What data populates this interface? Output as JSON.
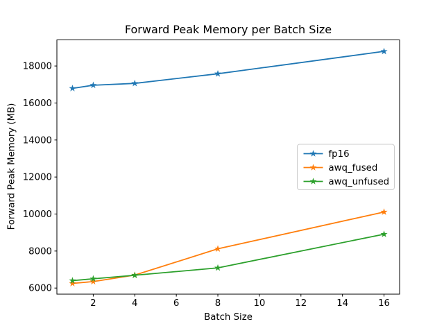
{
  "chart_data": {
    "type": "line",
    "title": "Forward Peak Memory per Batch Size",
    "xlabel": "Batch Size",
    "ylabel": "Forward Peak Memory (MB)",
    "x": [
      1,
      2,
      4,
      8,
      16
    ],
    "series": [
      {
        "name": "fp16",
        "color": "#1f77b4",
        "values": [
          16790,
          16960,
          17060,
          17580,
          18790
        ]
      },
      {
        "name": "awq_fused",
        "color": "#ff7f0e",
        "values": [
          6250,
          6350,
          6700,
          8120,
          10110
        ]
      },
      {
        "name": "awq_unfused",
        "color": "#2ca02c",
        "values": [
          6400,
          6500,
          6690,
          7090,
          8910
        ]
      }
    ],
    "xticks": [
      2,
      4,
      6,
      8,
      10,
      12,
      14,
      16
    ],
    "yticks": [
      6000,
      8000,
      10000,
      12000,
      14000,
      16000,
      18000
    ],
    "xlim": [
      0.25,
      16.75
    ],
    "ylim": [
      5670,
      19410
    ],
    "marker": "star",
    "grid": false,
    "legend_position": "center right",
    "legend_labels": [
      "fp16",
      "awq_fused",
      "awq_unfused"
    ]
  }
}
